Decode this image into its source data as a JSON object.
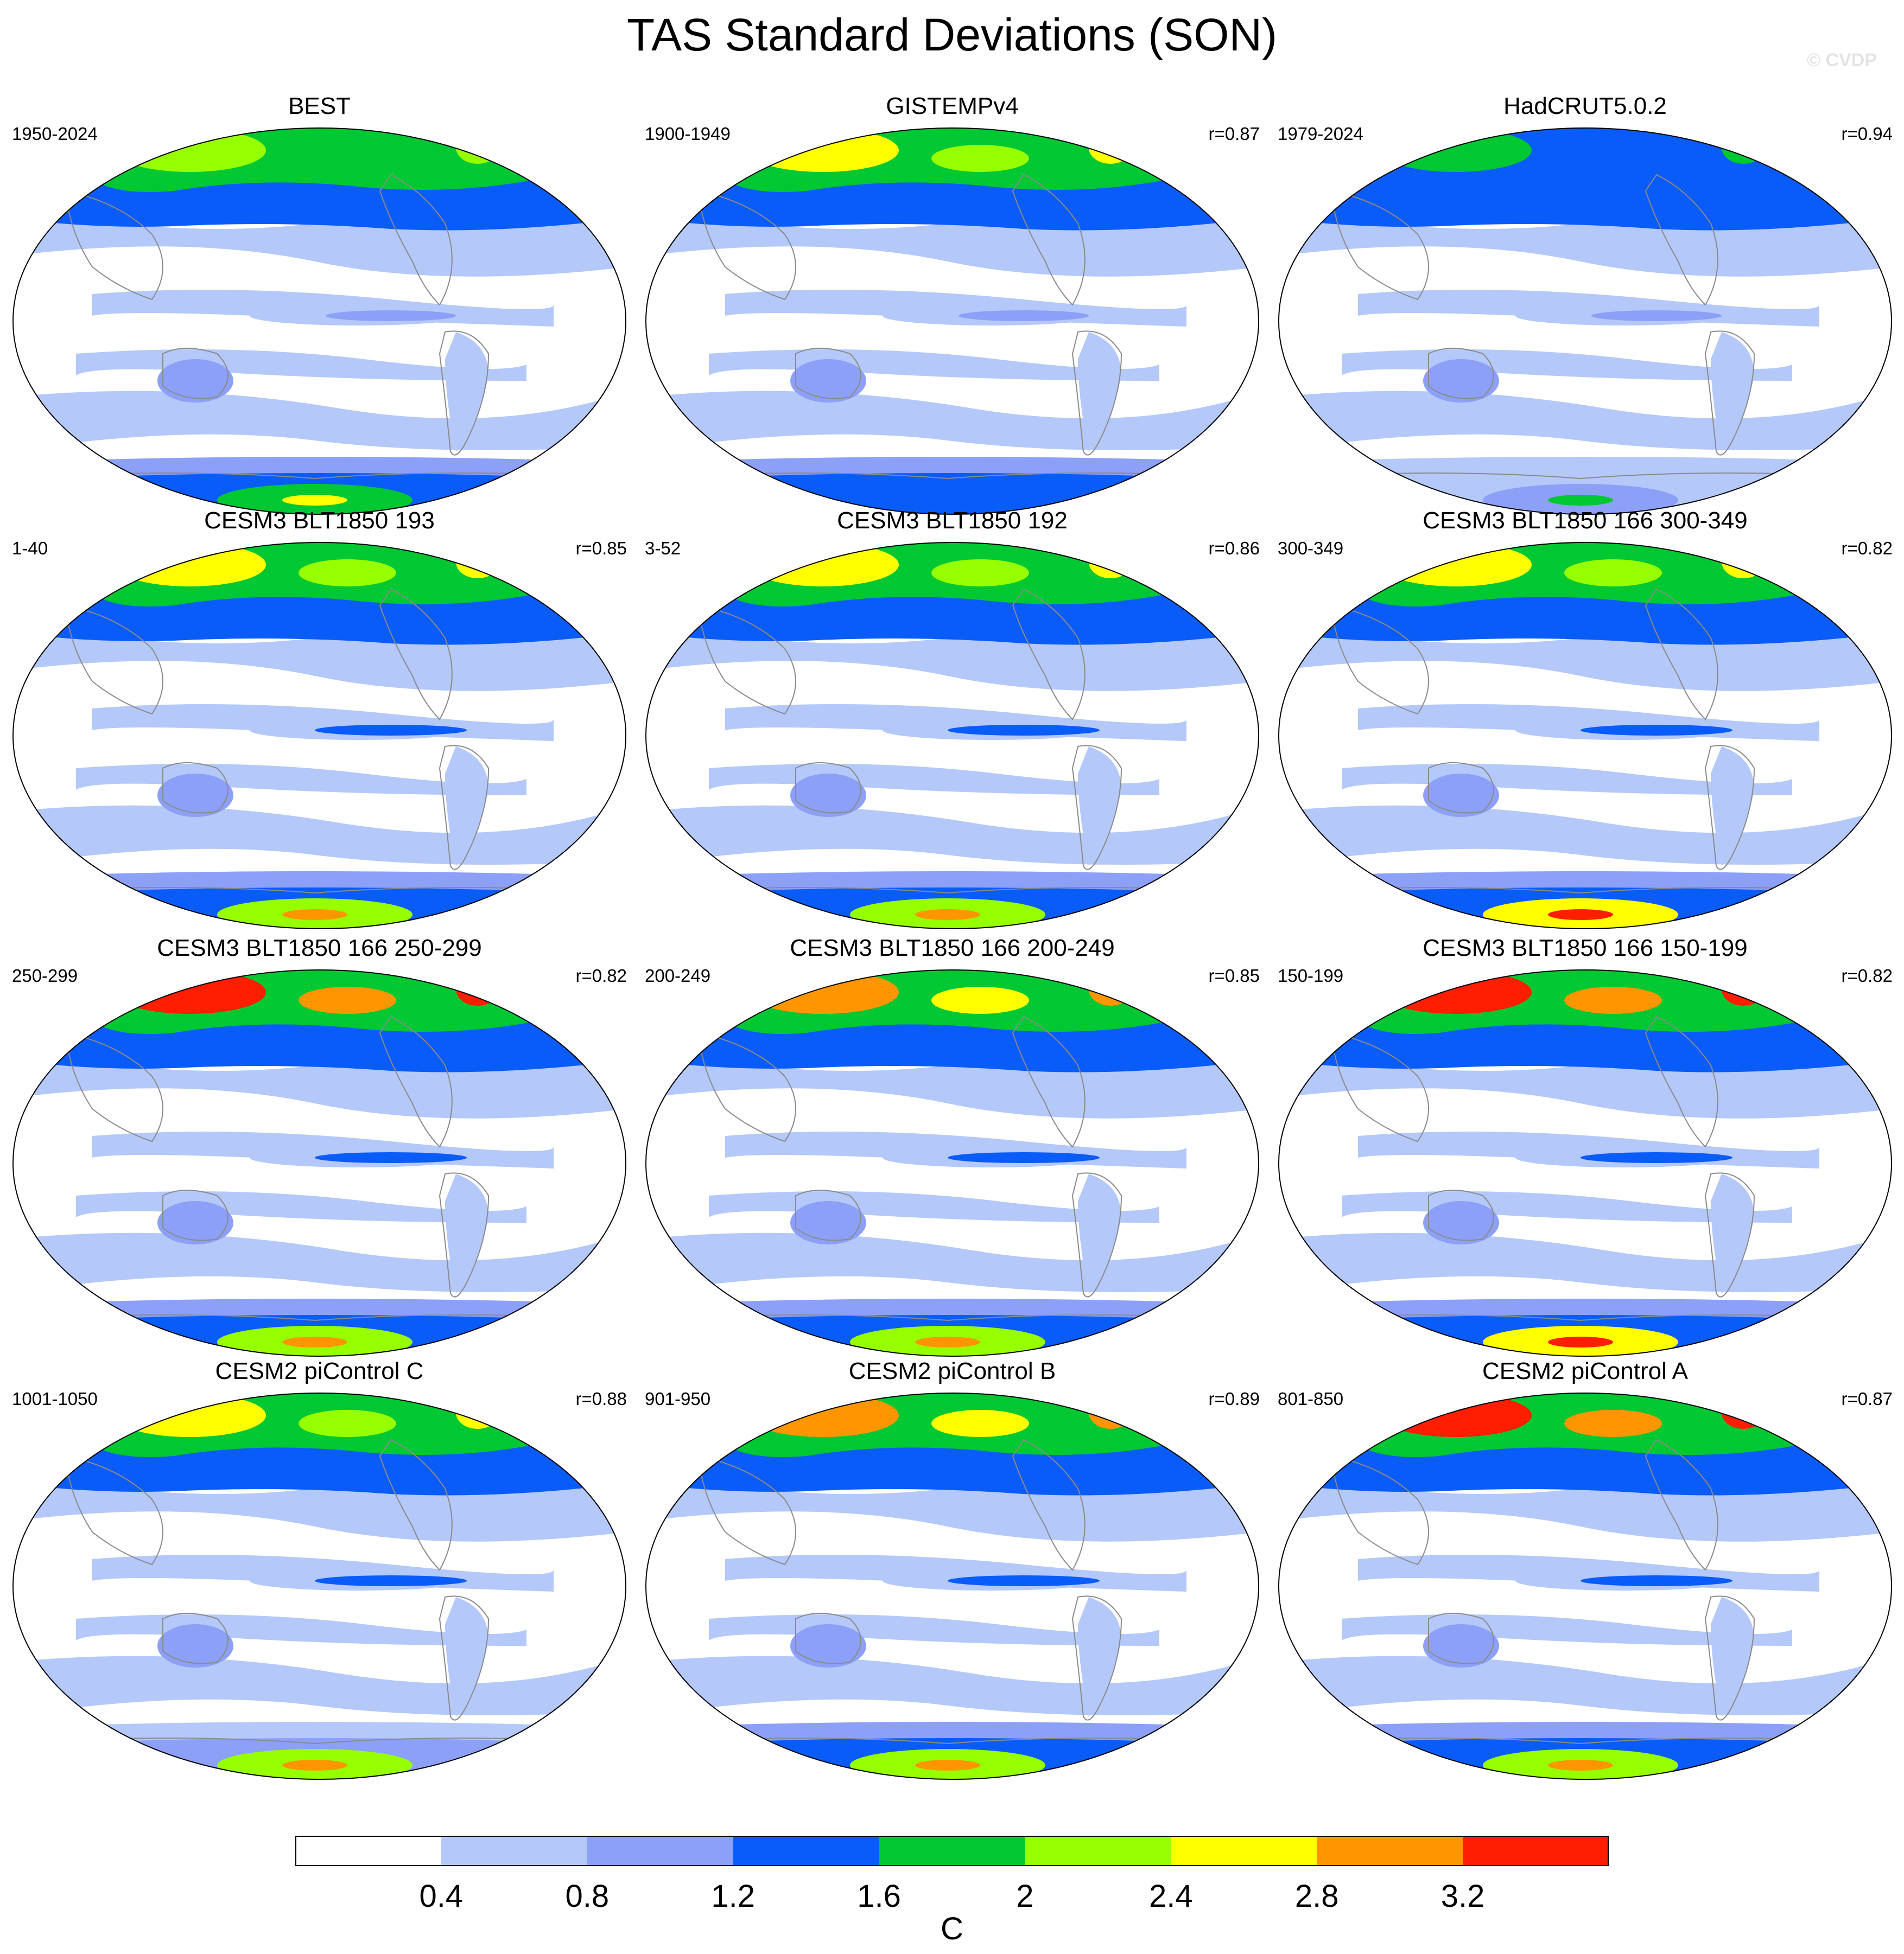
{
  "title": "TAS Standard Deviations (SON)",
  "watermark": "© CVDP",
  "colors": {
    "levels": [
      "#ffffff",
      "#b4c8fa",
      "#8ca0f8",
      "#0a5cf8",
      "#00c832",
      "#96ff00",
      "#ffff00",
      "#ff9600",
      "#ff1e00"
    ],
    "coast": "#8a8a8a",
    "outline": "#000000"
  },
  "panels": [
    {
      "title": "BEST",
      "left": "1950-2024",
      "right": "",
      "highlat": [
        3,
        4,
        5
      ],
      "eq": 2,
      "ant": [
        3,
        4
      ]
    },
    {
      "title": "GISTEMPv4",
      "left": "1900-1949",
      "right": "r=0.87",
      "highlat": [
        3,
        4,
        6
      ],
      "eq": 2,
      "ant": [
        3,
        0
      ]
    },
    {
      "title": "HadCRUT5.0.2",
      "left": "1979-2024",
      "right": "r=0.94",
      "highlat": [
        3,
        3,
        4
      ],
      "eq": 2,
      "ant": [
        1,
        2
      ]
    },
    {
      "title": "CESM3 BLT1850 193",
      "left": "1-40",
      "right": "r=0.85",
      "highlat": [
        3,
        4,
        6
      ],
      "eq": 3,
      "ant": [
        3,
        5
      ]
    },
    {
      "title": "CESM3 BLT1850 192",
      "left": "3-52",
      "right": "r=0.86",
      "highlat": [
        3,
        4,
        6
      ],
      "eq": 3,
      "ant": [
        3,
        5
      ]
    },
    {
      "title": "CESM3 BLT1850 166 300-349",
      "left": "300-349",
      "right": "r=0.82",
      "highlat": [
        3,
        4,
        6
      ],
      "eq": 3,
      "ant": [
        3,
        6
      ]
    },
    {
      "title": "CESM3 BLT1850 166 250-299",
      "left": "250-299",
      "right": "r=0.82",
      "highlat": [
        3,
        4,
        8
      ],
      "eq": 3,
      "ant": [
        3,
        5
      ]
    },
    {
      "title": "CESM3 BLT1850 166 200-249",
      "left": "200-249",
      "right": "r=0.85",
      "highlat": [
        3,
        4,
        7
      ],
      "eq": 3,
      "ant": [
        3,
        5
      ]
    },
    {
      "title": "CESM3 BLT1850 166 150-199",
      "left": "150-199",
      "right": "r=0.82",
      "highlat": [
        3,
        4,
        8
      ],
      "eq": 3,
      "ant": [
        3,
        6
      ]
    },
    {
      "title": "CESM2 piControl C",
      "left": "1001-1050",
      "right": "r=0.88",
      "highlat": [
        3,
        4,
        6
      ],
      "eq": 3,
      "ant": [
        2,
        5
      ]
    },
    {
      "title": "CESM2 piControl B",
      "left": "901-950",
      "right": "r=0.89",
      "highlat": [
        3,
        4,
        7
      ],
      "eq": 3,
      "ant": [
        3,
        5
      ]
    },
    {
      "title": "CESM2 piControl A",
      "left": "801-850",
      "right": "r=0.87",
      "highlat": [
        3,
        4,
        8
      ],
      "eq": 3,
      "ant": [
        3,
        5
      ]
    }
  ],
  "colorbar": {
    "ticks": [
      "0.4",
      "0.8",
      "1.2",
      "1.6",
      "2",
      "2.4",
      "2.8",
      "3.2"
    ],
    "unit": "C"
  }
}
